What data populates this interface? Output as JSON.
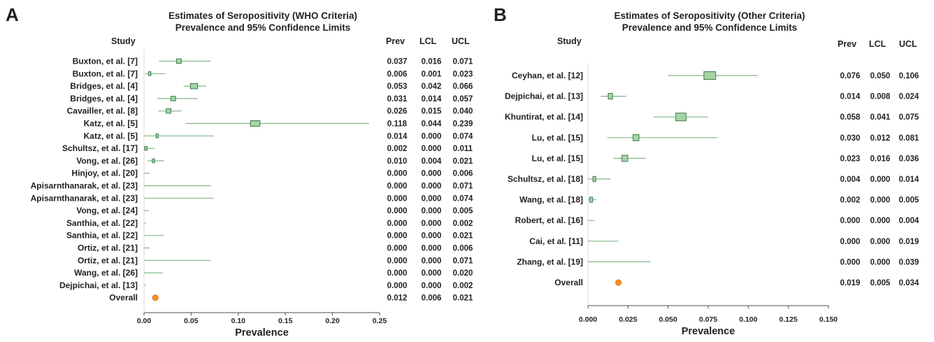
{
  "panels": [
    {
      "letter": "A",
      "title_line1": "Estimates of Seropositivity (WHO Criteria)",
      "title_line2": "Prevalence and 95% Confidence Limits",
      "study_header": "Study",
      "col_headers": [
        "Prev",
        "LCL",
        "UCL"
      ],
      "xlabel": "Prevalence"
    },
    {
      "letter": "B",
      "title_line1": "Estimates of Seropositivity (Other Criteria)",
      "title_line2": "Prevalence and 95% Confidence Limits",
      "study_header": "Study",
      "col_headers": [
        "Prev",
        "LCL",
        "UCL"
      ],
      "xlabel": "Prevalence"
    }
  ],
  "colors": {
    "box_fill": "#a6d4a6",
    "box_stroke": "#3f7a4a",
    "ci_line": "#7fb88a",
    "overall": "#f7941d",
    "text": "#231f20"
  },
  "chart_data": [
    {
      "type": "forest",
      "title": "Estimates of Seropositivity (WHO Criteria) Prevalence and 95% Confidence Limits",
      "xlabel": "Prevalence",
      "xlim": [
        0,
        0.25
      ],
      "xticks": [
        "0.00",
        "0.05",
        "0.10",
        "0.15",
        "0.20",
        "0.25"
      ],
      "xtick_values": [
        0,
        0.05,
        0.1,
        0.15,
        0.2,
        0.25
      ],
      "studies": [
        {
          "name": "Buxton, et al. [7]",
          "prev": "0.037",
          "lcl": "0.016",
          "ucl": "0.071",
          "weight": 2
        },
        {
          "name": "Buxton, et al. [7]",
          "prev": "0.006",
          "lcl": "0.001",
          "ucl": "0.023",
          "weight": 1
        },
        {
          "name": "Bridges, et al. [4]",
          "prev": "0.053",
          "lcl": "0.042",
          "ucl": "0.066",
          "weight": 3
        },
        {
          "name": "Bridges, et al. [4]",
          "prev": "0.031",
          "lcl": "0.014",
          "ucl": "0.057",
          "weight": 2
        },
        {
          "name": "Cavailler, et al. [8]",
          "prev": "0.026",
          "lcl": "0.015",
          "ucl": "0.040",
          "weight": 2
        },
        {
          "name": "Katz, et al. [5]",
          "prev": "0.118",
          "lcl": "0.044",
          "ucl": "0.239",
          "weight": 4
        },
        {
          "name": "Katz, et al. [5]",
          "prev": "0.014",
          "lcl": "0.000",
          "ucl": "0.074",
          "weight": 1
        },
        {
          "name": "Schultsz, et al. [17]",
          "prev": "0.002",
          "lcl": "0.000",
          "ucl": "0.011",
          "weight": 1
        },
        {
          "name": "Vong, et al. [26]",
          "prev": "0.010",
          "lcl": "0.004",
          "ucl": "0.021",
          "weight": 1
        },
        {
          "name": "Hinjoy, et al. [20]",
          "prev": "0.000",
          "lcl": "0.000",
          "ucl": "0.006",
          "weight": 0
        },
        {
          "name": "Apisarnthanarak, et al. [23]",
          "prev": "0.000",
          "lcl": "0.000",
          "ucl": "0.071",
          "weight": 0
        },
        {
          "name": "Apisarnthanarak, et al. [23]",
          "prev": "0.000",
          "lcl": "0.000",
          "ucl": "0.074",
          "weight": 0
        },
        {
          "name": "Vong, et al. [24]",
          "prev": "0.000",
          "lcl": "0.000",
          "ucl": "0.005",
          "weight": 0
        },
        {
          "name": "Santhia, et al. [22]",
          "prev": "0.000",
          "lcl": "0.000",
          "ucl": "0.002",
          "weight": 0
        },
        {
          "name": "Santhia, et al. [22]",
          "prev": "0.000",
          "lcl": "0.000",
          "ucl": "0.021",
          "weight": 0
        },
        {
          "name": "Ortiz, et al. [21]",
          "prev": "0.000",
          "lcl": "0.000",
          "ucl": "0.006",
          "weight": 0
        },
        {
          "name": "Ortiz, et al. [21]",
          "prev": "0.000",
          "lcl": "0.000",
          "ucl": "0.071",
          "weight": 0
        },
        {
          "name": "Wang, et al. [26]",
          "prev": "0.000",
          "lcl": "0.000",
          "ucl": "0.020",
          "weight": 0
        },
        {
          "name": "Dejpichai, et al. [13]",
          "prev": "0.000",
          "lcl": "0.000",
          "ucl": "0.002",
          "weight": 0
        }
      ],
      "overall": {
        "name": "Overall",
        "prev": "0.012",
        "lcl": "0.006",
        "ucl": "0.021"
      }
    },
    {
      "type": "forest",
      "title": "Estimates of Seropositivity (Other Criteria) Prevalence and 95% Confidence Limits",
      "xlabel": "Prevalence",
      "xlim": [
        0,
        0.15
      ],
      "xticks": [
        "0.000",
        "0.025",
        "0.050",
        "0.075",
        "0.100",
        "0.125",
        "0.150"
      ],
      "xtick_values": [
        0,
        0.025,
        0.05,
        0.075,
        0.1,
        0.125,
        0.15
      ],
      "studies": [
        {
          "name": "Ceyhan, et al. [12]",
          "prev": "0.076",
          "lcl": "0.050",
          "ucl": "0.106",
          "weight": 4
        },
        {
          "name": "Dejpichai, et al. [13]",
          "prev": "0.014",
          "lcl": "0.008",
          "ucl": "0.024",
          "weight": 1.5
        },
        {
          "name": "Khuntirat, et al. [14]",
          "prev": "0.058",
          "lcl": "0.041",
          "ucl": "0.075",
          "weight": 3.5
        },
        {
          "name": "Lu, et al. [15]",
          "prev": "0.030",
          "lcl": "0.012",
          "ucl": "0.081",
          "weight": 2
        },
        {
          "name": "Lu, et al. [15]",
          "prev": "0.023",
          "lcl": "0.016",
          "ucl": "0.036",
          "weight": 2
        },
        {
          "name": "Schultsz, et al. [18]",
          "prev": "0.004",
          "lcl": "0.000",
          "ucl": "0.014",
          "weight": 1
        },
        {
          "name": "Wang, et al. [18]",
          "prev": "0.002",
          "lcl": "0.000",
          "ucl": "0.005",
          "weight": 1
        },
        {
          "name": "Robert, et al. [16]",
          "prev": "0.000",
          "lcl": "0.000",
          "ucl": "0.004",
          "weight": 0
        },
        {
          "name": "Cai, et al. [11]",
          "prev": "0.000",
          "lcl": "0.000",
          "ucl": "0.019",
          "weight": 0
        },
        {
          "name": "Zhang, et al. [19]",
          "prev": "0.000",
          "lcl": "0.000",
          "ucl": "0.039",
          "weight": 0
        }
      ],
      "overall": {
        "name": "Overall",
        "prev": "0.019",
        "lcl": "0.005",
        "ucl": "0.034"
      }
    }
  ]
}
